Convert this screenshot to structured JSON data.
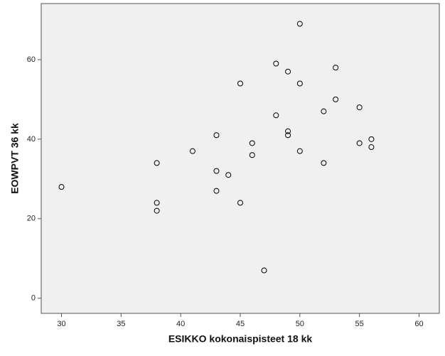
{
  "chart_data": {
    "type": "scatter",
    "x_label": "ESIKKO kokonaispisteet 18 kk",
    "y_label": "EOWPVT 36 kk",
    "x": [
      30,
      38,
      38,
      38,
      41,
      43,
      43,
      43,
      44,
      45,
      45,
      46,
      46,
      47,
      48,
      48,
      49,
      49,
      49,
      50,
      50,
      50,
      52,
      52,
      53,
      53,
      55,
      55,
      56,
      56
    ],
    "values": [
      28,
      34,
      24,
      22,
      37,
      41,
      32,
      27,
      31,
      54,
      24,
      39,
      36,
      7,
      59,
      46,
      57,
      42,
      41,
      69,
      54,
      37,
      47,
      34,
      58,
      50,
      48,
      39,
      40,
      38
    ],
    "xlim": [
      28.3,
      61.7
    ],
    "ylim": [
      -3.8,
      74.1
    ],
    "xticks": [
      30,
      35,
      40,
      45,
      50,
      55,
      60
    ],
    "yticks": [
      0,
      20,
      40,
      60
    ],
    "color": "#000000",
    "background": "#f0f0f0"
  }
}
